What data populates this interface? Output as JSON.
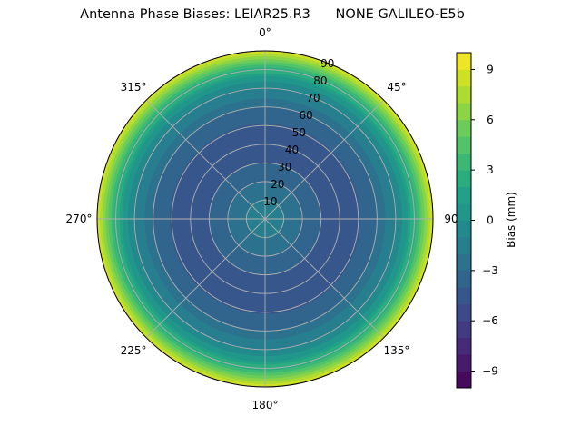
{
  "chart_data": {
    "type": "heatmap",
    "projection": "polar",
    "title": "Antenna Phase Biases: LEIAR25.R3      NONE GALILEO-E5b",
    "theta_direction": "clockwise",
    "theta_zero": "top",
    "theta_ticks": [
      {
        "deg": 0,
        "label": "0°"
      },
      {
        "deg": 45,
        "label": "45°"
      },
      {
        "deg": 90,
        "label": "90"
      },
      {
        "deg": 135,
        "label": "135°"
      },
      {
        "deg": 180,
        "label": "180°"
      },
      {
        "deg": 225,
        "label": "225°"
      },
      {
        "deg": 270,
        "label": "270°"
      },
      {
        "deg": 315,
        "label": "315°"
      }
    ],
    "r_ticks": [
      10,
      20,
      30,
      40,
      50,
      60,
      70,
      80,
      90
    ],
    "r_range": [
      0,
      90
    ],
    "grid": true,
    "colorbar": {
      "label": "Bias (mm)",
      "range": [
        -10,
        10
      ],
      "ticks": [
        -9,
        -6,
        -3,
        0,
        3,
        6,
        9
      ],
      "tick_labels": [
        "−9",
        "−6",
        "−3",
        "0",
        "3",
        "6",
        "9"
      ],
      "levels": 20,
      "colormap": "viridis"
    },
    "radial_profile": {
      "r": [
        0,
        10,
        20,
        30,
        40,
        50,
        60,
        70,
        75,
        80,
        85,
        88,
        90
      ],
      "bias": [
        -1.5,
        -2.0,
        -3.0,
        -4.0,
        -4.3,
        -4.1,
        -3.0,
        -1.0,
        0.5,
        2.5,
        5.5,
        7.5,
        9.0
      ]
    }
  }
}
